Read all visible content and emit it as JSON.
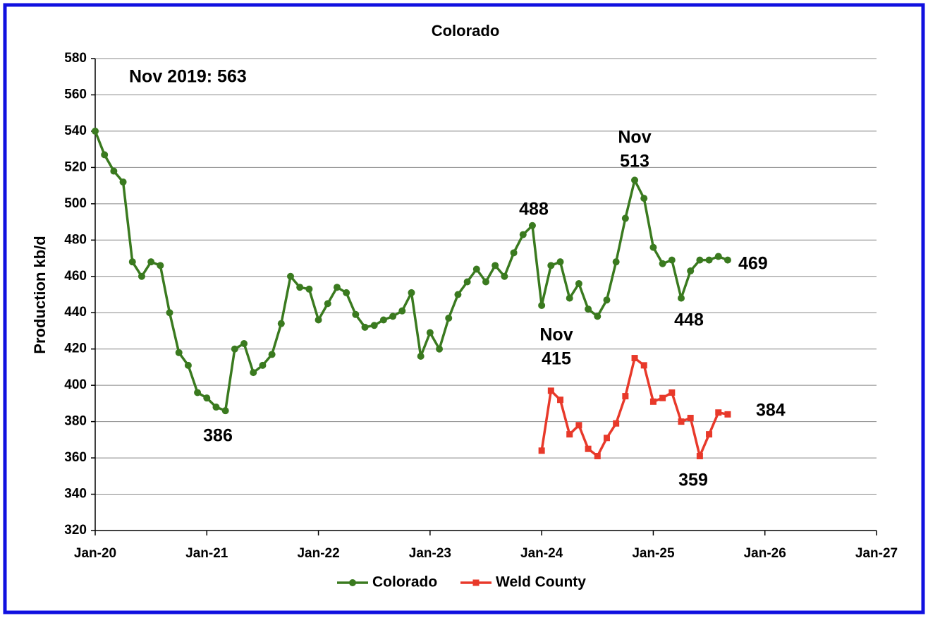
{
  "chart_data": {
    "type": "line",
    "title": "Colorado",
    "y_label": "Production kb/d",
    "x": [
      "2020-01",
      "2020-02",
      "2020-03",
      "2020-04",
      "2020-05",
      "2020-06",
      "2020-07",
      "2020-08",
      "2020-09",
      "2020-10",
      "2020-11",
      "2020-12",
      "2021-01",
      "2021-02",
      "2021-03",
      "2021-04",
      "2021-05",
      "2021-06",
      "2021-07",
      "2021-08",
      "2021-09",
      "2021-10",
      "2021-11",
      "2021-12",
      "2022-01",
      "2022-02",
      "2022-03",
      "2022-04",
      "2022-05",
      "2022-06",
      "2022-07",
      "2022-08",
      "2022-09",
      "2022-10",
      "2022-11",
      "2022-12",
      "2023-01",
      "2023-02",
      "2023-03",
      "2023-04",
      "2023-05",
      "2023-06",
      "2023-07",
      "2023-08",
      "2023-09",
      "2023-10",
      "2023-11",
      "2023-12",
      "2024-01",
      "2024-02",
      "2024-03",
      "2024-04",
      "2024-05",
      "2024-06",
      "2024-07",
      "2024-08",
      "2024-09",
      "2024-10",
      "2024-11",
      "2024-12",
      "2025-01",
      "2025-02",
      "2025-03",
      "2025-04",
      "2025-05",
      "2025-06",
      "2025-07",
      "2025-08",
      "2025-09"
    ],
    "series": [
      {
        "name": "Colorado",
        "color": "#3a7a1f",
        "marker": "circle",
        "values": [
          540,
          527,
          518,
          512,
          468,
          460,
          468,
          466,
          440,
          418,
          411,
          396,
          393,
          388,
          386,
          420,
          423,
          407,
          411,
          417,
          434,
          460,
          454,
          453,
          436,
          445,
          454,
          451,
          439,
          432,
          433,
          436,
          438,
          441,
          451,
          416,
          429,
          420,
          437,
          450,
          457,
          464,
          457,
          466,
          460,
          473,
          483,
          488,
          444,
          466,
          468,
          448,
          456,
          442,
          438,
          447,
          468,
          492,
          513,
          503,
          476,
          467,
          469,
          448,
          463,
          469,
          469,
          471,
          469
        ]
      },
      {
        "name": "Weld County",
        "color": "#e8392a",
        "marker": "square",
        "values": [
          null,
          null,
          null,
          null,
          null,
          null,
          null,
          null,
          null,
          null,
          null,
          null,
          null,
          null,
          null,
          null,
          null,
          null,
          null,
          null,
          null,
          null,
          null,
          null,
          null,
          null,
          null,
          null,
          null,
          null,
          null,
          null,
          null,
          null,
          null,
          null,
          null,
          null,
          null,
          null,
          null,
          null,
          null,
          null,
          null,
          null,
          null,
          null,
          364,
          397,
          392,
          373,
          378,
          365,
          361,
          371,
          379,
          394,
          415,
          411,
          391,
          393,
          396,
          380,
          382,
          361,
          373,
          385,
          384
        ]
      }
    ],
    "xlim": [
      "2020-01",
      "2027-01"
    ],
    "xticks": [
      {
        "value": "2020-01",
        "label": "Jan-20"
      },
      {
        "value": "2021-01",
        "label": "Jan-21"
      },
      {
        "value": "2022-01",
        "label": "Jan-22"
      },
      {
        "value": "2023-01",
        "label": "Jan-23"
      },
      {
        "value": "2024-01",
        "label": "Jan-24"
      },
      {
        "value": "2025-01",
        "label": "Jan-25"
      },
      {
        "value": "2026-01",
        "label": "Jan-26"
      },
      {
        "value": "2027-01",
        "label": "Jan-27"
      }
    ],
    "ylim": [
      320,
      580
    ],
    "yticks": [
      320,
      340,
      360,
      380,
      400,
      420,
      440,
      460,
      480,
      500,
      520,
      540,
      560,
      580
    ],
    "grid": true,
    "legend": "bottom",
    "annotations": [
      {
        "lines": [
          "Nov 2019:  563"
        ]
      },
      {
        "lines": [
          "488"
        ]
      },
      {
        "lines": [
          "Nov",
          "513"
        ]
      },
      {
        "lines": [
          "469"
        ]
      },
      {
        "lines": [
          "448"
        ]
      },
      {
        "lines": [
          "Nov",
          "415"
        ]
      },
      {
        "lines": [
          "386"
        ]
      },
      {
        "lines": [
          "384"
        ]
      },
      {
        "lines": [
          "359"
        ]
      }
    ]
  }
}
